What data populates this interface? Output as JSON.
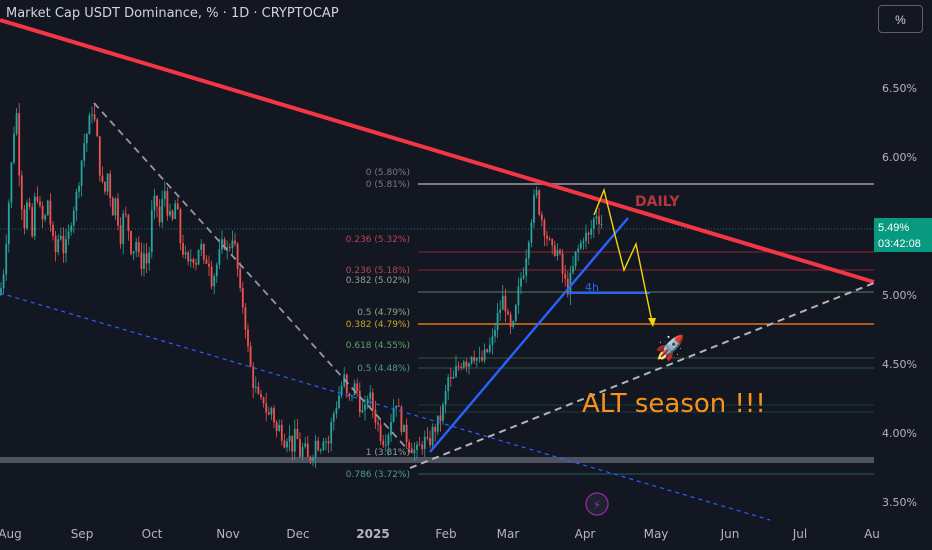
{
  "header": {
    "title": "Market Cap USDT Dominance, % · 1D · CRYPTOCAP",
    "scale_button": "%"
  },
  "price_badge": {
    "value": "5.49%",
    "countdown": "03:42:08",
    "color": "#089981"
  },
  "annotations": {
    "daily": "DAILY",
    "four_h": "4h",
    "alt_season": "ALT season !!!",
    "rocket": "🚀",
    "lightning": "⚡"
  },
  "chart_data": {
    "type": "candlestick",
    "title": "Market Cap USDT Dominance, % · 1D · CRYPTOCAP",
    "y_ticks": [
      "6.50%",
      "6.00%",
      "5.50%",
      "5.00%",
      "4.50%",
      "4.00%",
      "3.50%"
    ],
    "y_tick_values": [
      6.5,
      6.0,
      5.5,
      5.0,
      4.5,
      4.0,
      3.5
    ],
    "ylim": [
      3.3,
      6.9
    ],
    "x_ticks": [
      "Aug",
      "Sep",
      "Oct",
      "Nov",
      "Dec",
      "2025",
      "Feb",
      "Mar",
      "Apr",
      "May",
      "Jun",
      "Jul",
      "Au"
    ],
    "last_price": 5.49,
    "fib_labels": [
      {
        "text": "0 (5.80%)",
        "value": 5.8
      },
      {
        "text": "0 (5.81%)",
        "value": 5.81
      },
      {
        "text": "0.236 (5.32%)",
        "value": 5.32
      },
      {
        "text": "0.236 (5.18%)",
        "value": 5.18
      },
      {
        "text": "0.382 (5.02%)",
        "value": 5.02
      },
      {
        "text": "0.5 (4.79%)",
        "value": 4.79
      },
      {
        "text": "0.382 (4.79%)",
        "value": 4.79
      },
      {
        "text": "0.618 (4.55%)",
        "value": 4.55
      },
      {
        "text": "0.5 (4.48%)",
        "value": 4.48
      },
      {
        "text": "1 (3.81%)",
        "value": 3.81
      },
      {
        "text": "0.786 (3.72%)",
        "value": 3.72
      }
    ],
    "price_path": [
      [
        0,
        5.0
      ],
      [
        4,
        5.2
      ],
      [
        8,
        5.6
      ],
      [
        12,
        6.0
      ],
      [
        16,
        6.4
      ],
      [
        20,
        5.8
      ],
      [
        24,
        5.5
      ],
      [
        28,
        5.7
      ],
      [
        32,
        5.4
      ],
      [
        36,
        5.8
      ],
      [
        40,
        5.6
      ],
      [
        44,
        5.5
      ],
      [
        48,
        5.7
      ],
      [
        52,
        5.4
      ],
      [
        56,
        5.3
      ],
      [
        60,
        5.5
      ],
      [
        64,
        5.3
      ],
      [
        68,
        5.4
      ],
      [
        72,
        5.6
      ],
      [
        76,
        5.7
      ],
      [
        80,
        5.9
      ],
      [
        84,
        6.1
      ],
      [
        88,
        6.2
      ],
      [
        92,
        6.35
      ],
      [
        96,
        6.2
      ],
      [
        100,
        5.9
      ],
      [
        104,
        5.7
      ],
      [
        108,
        5.9
      ],
      [
        112,
        5.6
      ],
      [
        116,
        5.7
      ],
      [
        120,
        5.4
      ],
      [
        124,
        5.6
      ],
      [
        128,
        5.5
      ],
      [
        132,
        5.3
      ],
      [
        136,
        5.4
      ],
      [
        140,
        5.2
      ],
      [
        144,
        5.3
      ],
      [
        148,
        5.2
      ],
      [
        152,
        5.6
      ],
      [
        156,
        5.7
      ],
      [
        160,
        5.5
      ],
      [
        164,
        5.8
      ],
      [
        168,
        5.6
      ],
      [
        172,
        5.5
      ],
      [
        176,
        5.7
      ],
      [
        180,
        5.4
      ],
      [
        184,
        5.3
      ],
      [
        188,
        5.2
      ],
      [
        192,
        5.3
      ],
      [
        196,
        5.25
      ],
      [
        200,
        5.4
      ],
      [
        204,
        5.2
      ],
      [
        208,
        5.3
      ],
      [
        212,
        5.1
      ],
      [
        216,
        5.2
      ],
      [
        220,
        5.3
      ],
      [
        224,
        5.4
      ],
      [
        228,
        5.3
      ],
      [
        232,
        5.45
      ],
      [
        236,
        5.3
      ],
      [
        240,
        5.0
      ],
      [
        244,
        4.9
      ],
      [
        248,
        4.6
      ],
      [
        252,
        4.4
      ],
      [
        256,
        4.3
      ],
      [
        260,
        4.2
      ],
      [
        264,
        4.25
      ],
      [
        268,
        4.1
      ],
      [
        272,
        4.2
      ],
      [
        276,
        4.0
      ],
      [
        280,
        4.05
      ],
      [
        284,
        3.95
      ],
      [
        288,
        4.0
      ],
      [
        292,
        3.9
      ],
      [
        296,
        4.0
      ],
      [
        300,
        3.85
      ],
      [
        304,
        3.9
      ],
      [
        308,
        3.8
      ],
      [
        312,
        3.85
      ],
      [
        316,
        3.95
      ],
      [
        320,
        3.9
      ],
      [
        324,
        4.0
      ],
      [
        328,
        3.9
      ],
      [
        332,
        4.1
      ],
      [
        336,
        4.2
      ],
      [
        340,
        4.3
      ],
      [
        344,
        4.4
      ],
      [
        348,
        4.2
      ],
      [
        352,
        4.3
      ],
      [
        356,
        4.35
      ],
      [
        360,
        4.2
      ],
      [
        364,
        4.1
      ],
      [
        368,
        4.3
      ],
      [
        372,
        4.2
      ],
      [
        376,
        4.1
      ],
      [
        380,
        4.0
      ],
      [
        384,
        3.95
      ],
      [
        388,
        4.0
      ],
      [
        392,
        4.15
      ],
      [
        396,
        4.25
      ],
      [
        400,
        4.1
      ],
      [
        404,
        4.0
      ],
      [
        408,
        3.95
      ],
      [
        412,
        3.9
      ],
      [
        416,
        3.85
      ],
      [
        420,
        3.9
      ],
      [
        424,
        3.95
      ],
      [
        428,
        3.9
      ],
      [
        432,
        4.0
      ],
      [
        436,
        4.05
      ],
      [
        440,
        4.1
      ],
      [
        444,
        4.2
      ],
      [
        448,
        4.4
      ],
      [
        452,
        4.35
      ],
      [
        456,
        4.45
      ],
      [
        460,
        4.5
      ],
      [
        464,
        4.55
      ],
      [
        468,
        4.5
      ],
      [
        472,
        4.6
      ],
      [
        476,
        4.55
      ],
      [
        480,
        4.5
      ],
      [
        484,
        4.55
      ],
      [
        488,
        4.6
      ],
      [
        492,
        4.65
      ],
      [
        496,
        4.8
      ],
      [
        500,
        4.9
      ],
      [
        504,
        5.0
      ],
      [
        508,
        4.8
      ],
      [
        512,
        4.7
      ],
      [
        516,
        4.9
      ],
      [
        520,
        5.1
      ],
      [
        524,
        5.2
      ],
      [
        528,
        5.4
      ],
      [
        532,
        5.6
      ],
      [
        536,
        5.75
      ],
      [
        540,
        5.6
      ],
      [
        544,
        5.5
      ],
      [
        548,
        5.4
      ],
      [
        552,
        5.3
      ],
      [
        556,
        5.35
      ],
      [
        560,
        5.25
      ],
      [
        564,
        5.1
      ],
      [
        568,
        5.05
      ],
      [
        572,
        5.15
      ],
      [
        576,
        5.3
      ],
      [
        580,
        5.35
      ],
      [
        584,
        5.45
      ],
      [
        588,
        5.4
      ],
      [
        592,
        5.5
      ],
      [
        596,
        5.6
      ],
      [
        600,
        5.55
      ],
      [
        604,
        5.49
      ]
    ]
  },
  "colors": {
    "background": "#131722",
    "resistance_line": "#f23645",
    "support_line": "#2962ff",
    "up_candle": "#26a69a",
    "down_candle": "#ef5350",
    "projection_arrow": "#f5d60b",
    "alt_season_text": "#f7931a",
    "axis_text": "#b2b5be"
  }
}
